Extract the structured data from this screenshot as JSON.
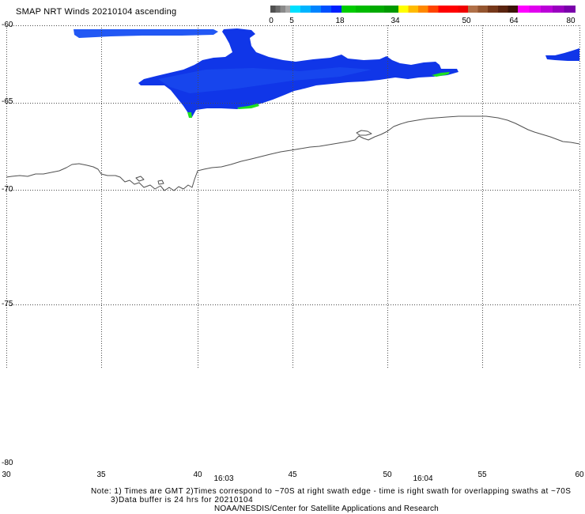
{
  "title": "SMAP NRT Winds 20210104 ascending",
  "colorbar": {
    "ticks": [
      "0",
      "5",
      "18",
      "34",
      "50",
      "64",
      "80"
    ],
    "segments": [
      [
        "#505050",
        "#6c6c6c",
        "#8a8a8a",
        "#a8a8a8"
      ],
      [
        "#00e0ff",
        "#00b4ff",
        "#0084ff",
        "#0050ff",
        "#0020ff"
      ],
      [
        "#00cc00",
        "#00bb00",
        "#00aa00",
        "#009a00"
      ],
      [
        "#ffff00",
        "#ffbb00",
        "#ff8800",
        "#ff4400",
        "#ff0000",
        "#ff0000",
        "#f00000"
      ],
      [
        "#b07048",
        "#94552f",
        "#76381a",
        "#5a2410",
        "#3c1408"
      ],
      [
        "#ff00ff",
        "#e000ee",
        "#bb00d8",
        "#9a00c0",
        "#7a00aa"
      ]
    ]
  },
  "map": {
    "lat_labels": [
      "-60",
      "-65",
      "-70",
      "-75",
      "-80"
    ],
    "lon_labels": [
      "30",
      "35",
      "40",
      "45",
      "50",
      "55",
      "60"
    ],
    "times": [
      "16:03",
      "16:04"
    ]
  },
  "notes": {
    "line1": "Note: 1) Times are GMT 2)Times correspond to ~70S at right swath edge - time is right swath for overlapping swaths at ~70S",
    "line2": "3)Data buffer is 24 hrs for 20210104",
    "credit": "NOAA/NESDIS/Center for Satellite Applications and Research"
  },
  "colors": {
    "background": "#ffffff",
    "text": "#000000",
    "grid": "#4a4a4a",
    "coastline": "#505050",
    "swath_blue": "#1036e8",
    "swath_blue_light": "#2258f4",
    "swath_green": "#1ee01e"
  }
}
